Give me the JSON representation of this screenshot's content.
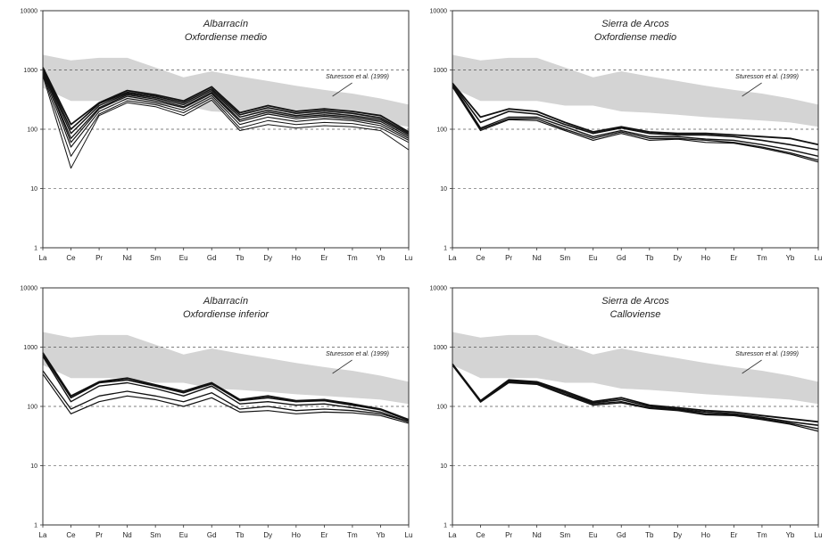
{
  "chart_data": [
    {
      "type": "line",
      "title": [
        "Albarracín",
        "Oxfordiense medio"
      ],
      "categories": [
        "La",
        "Ce",
        "Pr",
        "Nd",
        "Sm",
        "Eu",
        "Gd",
        "Tb",
        "Dy",
        "Ho",
        "Er",
        "Tm",
        "Yb",
        "Lu"
      ],
      "y_scale": "log",
      "ylim": [
        1,
        10000
      ],
      "y_ticks": [
        "1",
        "10",
        "100",
        "1000",
        "10000"
      ],
      "reference_lines": [
        100,
        1000
      ],
      "envelope": {
        "label": "Sturesson et al. (1999)",
        "upper": [
          1800,
          1450,
          1600,
          1600,
          1100,
          750,
          950,
          780,
          650,
          540,
          460,
          400,
          330,
          260
        ],
        "lower": [
          500,
          300,
          300,
          300,
          250,
          250,
          200,
          190,
          175,
          160,
          150,
          140,
          130,
          110
        ]
      },
      "series": [
        {
          "values": [
            1100,
            120,
            280,
            450,
            380,
            300,
            520,
            190,
            250,
            200,
            220,
            200,
            170,
            90
          ]
        },
        {
          "values": [
            1050,
            100,
            270,
            420,
            360,
            280,
            480,
            175,
            230,
            185,
            205,
            185,
            155,
            85
          ]
        },
        {
          "values": [
            1000,
            85,
            250,
            400,
            340,
            260,
            450,
            160,
            210,
            170,
            190,
            170,
            145,
            80
          ]
        },
        {
          "values": [
            950,
            70,
            230,
            380,
            320,
            240,
            420,
            145,
            195,
            160,
            175,
            160,
            135,
            75
          ]
        },
        {
          "values": [
            1000,
            60,
            220,
            360,
            300,
            230,
            400,
            135,
            180,
            150,
            165,
            150,
            125,
            70
          ]
        },
        {
          "values": [
            900,
            50,
            200,
            330,
            280,
            210,
            370,
            120,
            160,
            135,
            150,
            140,
            115,
            65
          ]
        },
        {
          "values": [
            850,
            35,
            180,
            300,
            260,
            190,
            340,
            105,
            140,
            120,
            130,
            125,
            105,
            60
          ]
        },
        {
          "values": [
            800,
            22,
            170,
            280,
            240,
            170,
            310,
            95,
            120,
            105,
            115,
            110,
            95,
            45
          ]
        }
      ]
    },
    {
      "type": "line",
      "title": [
        "Sierra de Arcos",
        "Oxfordiense medio"
      ],
      "categories": [
        "La",
        "Ce",
        "Pr",
        "Nd",
        "Sm",
        "Eu",
        "Gd",
        "Tb",
        "Dy",
        "Ho",
        "Er",
        "Tm",
        "Yb",
        "Lu"
      ],
      "y_scale": "log",
      "ylim": [
        1,
        10000
      ],
      "y_ticks": [
        "1",
        "10",
        "100",
        "1000",
        "10000"
      ],
      "reference_lines": [
        100,
        1000
      ],
      "envelope": {
        "label": "Sturesson et al. (1999)",
        "upper": [
          1800,
          1450,
          1600,
          1600,
          1100,
          750,
          950,
          780,
          650,
          540,
          460,
          400,
          330,
          260
        ],
        "lower": [
          500,
          300,
          300,
          300,
          250,
          250,
          200,
          190,
          175,
          160,
          150,
          140,
          130,
          110
        ]
      },
      "series": [
        {
          "values": [
            600,
            160,
            220,
            200,
            130,
            90,
            110,
            90,
            85,
            85,
            80,
            75,
            70,
            55
          ]
        },
        {
          "values": [
            580,
            130,
            200,
            180,
            120,
            85,
            105,
            85,
            80,
            80,
            75,
            65,
            55,
            45
          ]
        },
        {
          "values": [
            560,
            105,
            160,
            160,
            110,
            75,
            95,
            75,
            75,
            68,
            65,
            55,
            45,
            35
          ]
        },
        {
          "values": [
            540,
            100,
            150,
            150,
            100,
            70,
            90,
            70,
            70,
            65,
            60,
            50,
            40,
            30
          ]
        },
        {
          "values": [
            520,
            95,
            145,
            140,
            95,
            65,
            85,
            65,
            68,
            60,
            58,
            48,
            38,
            28
          ]
        }
      ]
    },
    {
      "type": "line",
      "title": [
        "Albarracín",
        "Oxfordiense inferior"
      ],
      "categories": [
        "La",
        "Ce",
        "Pr",
        "Nd",
        "Sm",
        "Eu",
        "Gd",
        "Tb",
        "Dy",
        "Ho",
        "Er",
        "Tm",
        "Yb",
        "Lu"
      ],
      "y_scale": "log",
      "ylim": [
        1,
        10000
      ],
      "y_ticks": [
        "1",
        "10",
        "100",
        "1000",
        "10000"
      ],
      "reference_lines": [
        100,
        1000
      ],
      "envelope": {
        "label": "Sturesson et al. (1999)",
        "upper": [
          1800,
          1450,
          1600,
          1600,
          1100,
          750,
          950,
          780,
          650,
          540,
          460,
          400,
          330,
          260
        ],
        "lower": [
          500,
          300,
          300,
          300,
          250,
          250,
          200,
          190,
          175,
          160,
          150,
          140,
          130,
          110
        ]
      },
      "series": [
        {
          "values": [
            800,
            150,
            260,
            300,
            230,
            180,
            250,
            130,
            150,
            125,
            130,
            110,
            90,
            60
          ]
        },
        {
          "values": [
            750,
            140,
            250,
            280,
            220,
            170,
            240,
            125,
            140,
            120,
            125,
            105,
            88,
            58
          ]
        },
        {
          "values": [
            700,
            120,
            220,
            250,
            200,
            150,
            220,
            110,
            120,
            105,
            110,
            95,
            80,
            55
          ]
        },
        {
          "values": [
            400,
            90,
            150,
            180,
            150,
            120,
            170,
            90,
            100,
            85,
            90,
            85,
            75,
            55
          ]
        },
        {
          "values": [
            350,
            75,
            120,
            150,
            130,
            100,
            140,
            80,
            85,
            75,
            80,
            78,
            70,
            52
          ]
        }
      ]
    },
    {
      "type": "line",
      "title": [
        "Sierra de Arcos",
        "Calloviense"
      ],
      "categories": [
        "La",
        "Ce",
        "Pr",
        "Nd",
        "Sm",
        "Eu",
        "Gd",
        "Tb",
        "Dy",
        "Ho",
        "Er",
        "Tm",
        "Yb",
        "Lu"
      ],
      "y_scale": "log",
      "ylim": [
        1,
        10000
      ],
      "y_ticks": [
        "1",
        "10",
        "100",
        "1000",
        "10000"
      ],
      "reference_lines": [
        100,
        1000
      ],
      "envelope": {
        "label": "Sturesson et al. (1999)",
        "upper": [
          1800,
          1450,
          1600,
          1600,
          1100,
          750,
          950,
          780,
          650,
          540,
          460,
          400,
          330,
          260
        ],
        "lower": [
          500,
          300,
          300,
          300,
          250,
          250,
          200,
          190,
          175,
          160,
          150,
          140,
          130,
          110
        ]
      },
      "series": [
        {
          "values": [
            520,
            125,
            280,
            260,
            180,
            120,
            140,
            105,
            95,
            85,
            80,
            70,
            62,
            55
          ]
        },
        {
          "values": [
            510,
            120,
            270,
            250,
            170,
            115,
            130,
            100,
            90,
            80,
            75,
            65,
            55,
            48
          ]
        },
        {
          "values": [
            500,
            120,
            260,
            240,
            160,
            110,
            120,
            95,
            88,
            75,
            72,
            62,
            52,
            42
          ]
        },
        {
          "values": [
            495,
            118,
            250,
            235,
            155,
            105,
            115,
            92,
            85,
            72,
            70,
            60,
            50,
            38
          ]
        }
      ]
    }
  ]
}
